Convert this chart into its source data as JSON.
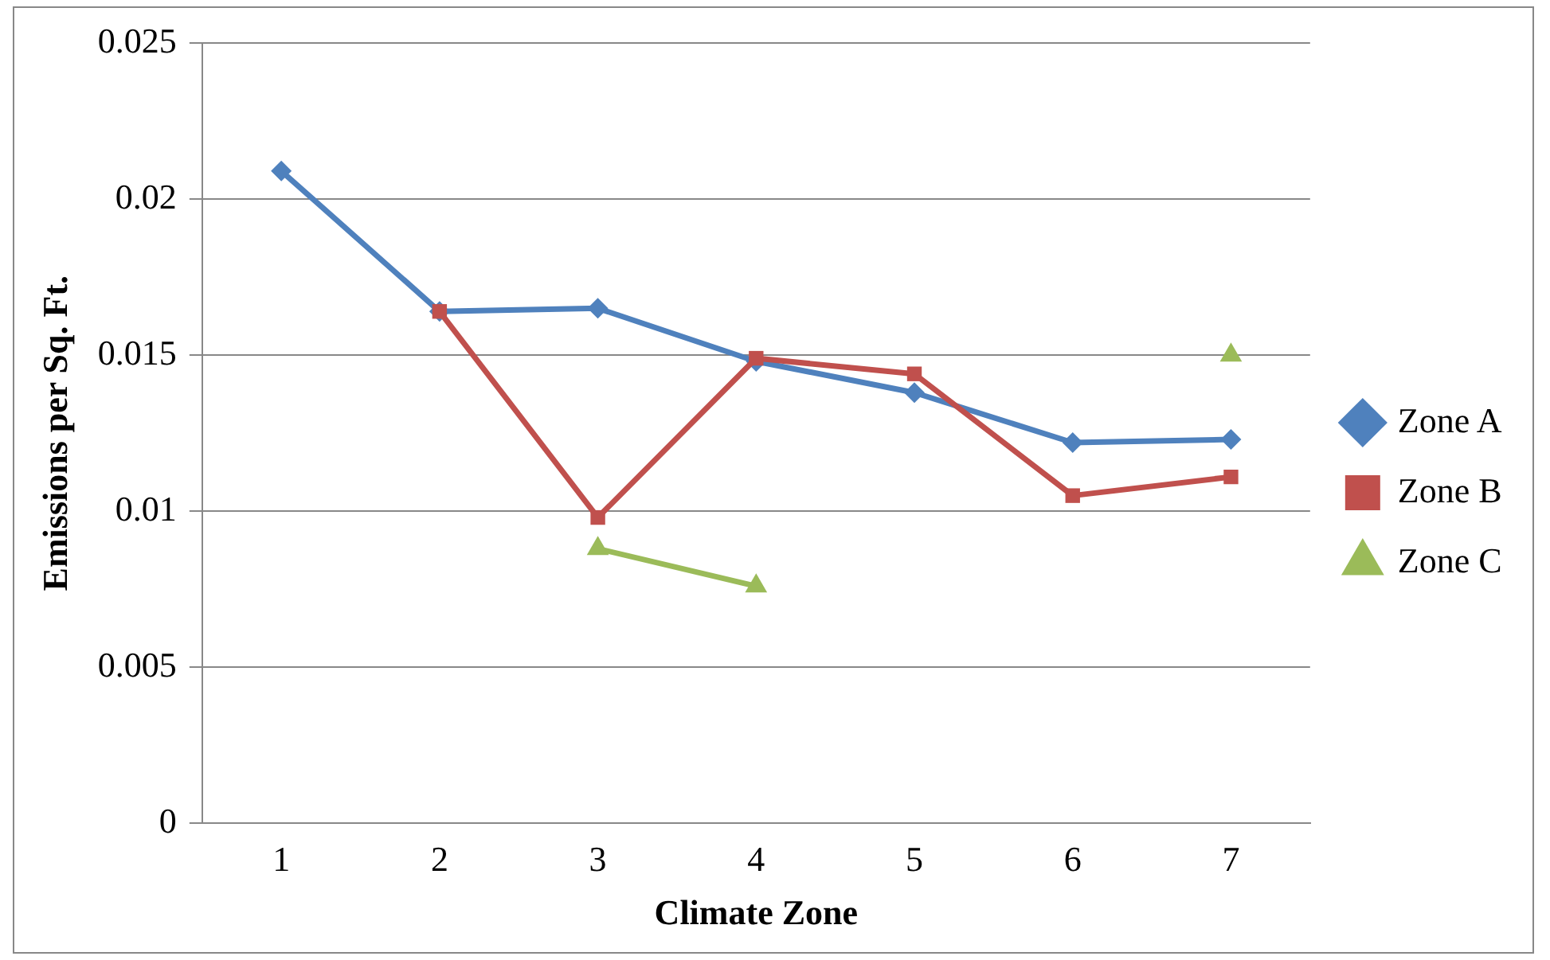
{
  "chart_data": {
    "type": "line",
    "xlabel": "Climate Zone",
    "ylabel": "Emissions per Sq. Ft.",
    "categories": [
      "1",
      "2",
      "3",
      "4",
      "5",
      "6",
      "7"
    ],
    "series": [
      {
        "name": "Zone A",
        "color": "#4f81bd",
        "marker": "diamond",
        "values": [
          0.0209,
          0.0164,
          0.0165,
          0.0148,
          0.0138,
          0.0122,
          0.0123
        ]
      },
      {
        "name": "Zone B",
        "color": "#c0504d",
        "marker": "square",
        "values": [
          null,
          0.0164,
          0.0098,
          0.0149,
          0.0144,
          0.0105,
          0.0111
        ]
      },
      {
        "name": "Zone C",
        "color": "#9bbb59",
        "marker": "triangle",
        "values": [
          null,
          null,
          0.0088,
          0.0076,
          null,
          null,
          0.015
        ]
      }
    ],
    "ylim": [
      0,
      0.025
    ],
    "yticks": [
      0,
      0.005,
      0.01,
      0.015,
      0.02,
      0.025
    ],
    "grid": "y",
    "legend": "right",
    "line_style": "solid"
  }
}
